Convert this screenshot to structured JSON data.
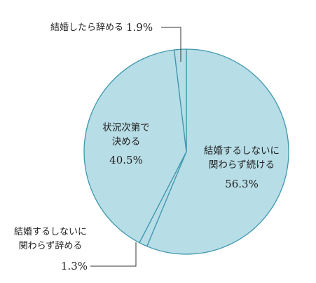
{
  "chart_data": {
    "type": "pie",
    "title": "",
    "start": "12 o'clock",
    "direction": "clockwise",
    "slices": [
      {
        "label_lines": [
          "結婚するしないに",
          "関わらず続ける"
        ],
        "value": 56.3,
        "value_label": "56.3%"
      },
      {
        "label_lines": [
          "結婚するしないに",
          "関わらず辞める"
        ],
        "value": 1.3,
        "value_label": "1.3%"
      },
      {
        "label_lines": [
          "状況次第で",
          "決める"
        ],
        "value": 40.5,
        "value_label": "40.5%"
      },
      {
        "label_lines": [
          "結婚したら辞める"
        ],
        "value": 1.9,
        "value_label": "1.9%"
      }
    ],
    "colors": {
      "fill": "#b7dde6",
      "stroke": "#3f97ad",
      "leader": "#333333"
    }
  }
}
